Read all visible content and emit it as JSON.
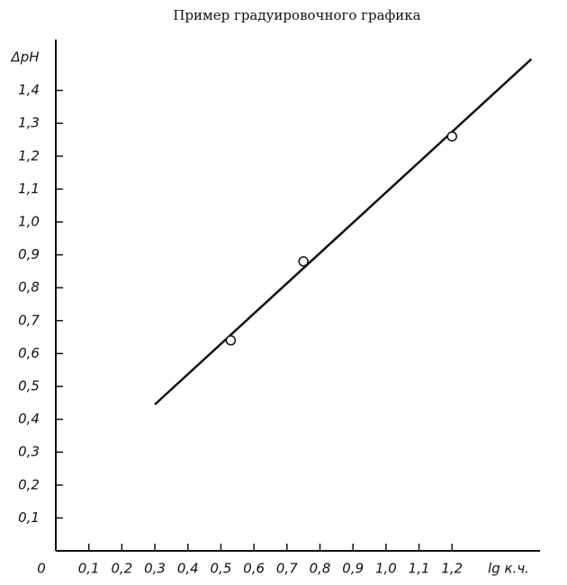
{
  "chart_data": {
    "type": "scatter",
    "title": "Пример градуировочного графика",
    "y_label": "ΔpH",
    "x_label": "lg к.ч.",
    "xlim": [
      0,
      1.45
    ],
    "ylim": [
      0,
      1.5
    ],
    "xticks": [
      0,
      {
        "value": 0.1,
        "label": "0,1"
      },
      {
        "value": 0.2,
        "label": "0,2"
      },
      {
        "value": 0.3,
        "label": "0,3"
      },
      {
        "value": 0.4,
        "label": "0,4"
      },
      {
        "value": 0.5,
        "label": "0,5"
      },
      {
        "value": 0.6,
        "label": "0,6"
      },
      {
        "value": 0.7,
        "label": "0,7"
      },
      {
        "value": 0.8,
        "label": "0,8"
      },
      {
        "value": 0.9,
        "label": "0,9"
      },
      {
        "value": 1.0,
        "label": "1,0"
      },
      {
        "value": 1.1,
        "label": "1,1"
      },
      {
        "value": 1.2,
        "label": "1,2"
      }
    ],
    "yticks": [
      {
        "value": 0.1,
        "label": "0,1"
      },
      {
        "value": 0.2,
        "label": "0,2"
      },
      {
        "value": 0.3,
        "label": "0,3"
      },
      {
        "value": 0.4,
        "label": "0,4"
      },
      {
        "value": 0.5,
        "label": "0,5"
      },
      {
        "value": 0.6,
        "label": "0,6"
      },
      {
        "value": 0.7,
        "label": "0,7"
      },
      {
        "value": 0.8,
        "label": "0,8"
      },
      {
        "value": 0.9,
        "label": "0,9"
      },
      {
        "value": 1.0,
        "label": "1,0"
      },
      {
        "value": 1.1,
        "label": "1,1"
      },
      {
        "value": 1.2,
        "label": "1,2"
      },
      {
        "value": 1.3,
        "label": "1,3"
      },
      {
        "value": 1.4,
        "label": "1,4"
      }
    ],
    "points": {
      "x": [
        0.53,
        0.75,
        1.2
      ],
      "y": [
        0.64,
        0.88,
        1.26
      ]
    },
    "fit_line": {
      "x": [
        0.3,
        1.44
      ],
      "y": [
        0.445,
        1.495
      ]
    },
    "color": "#111111"
  }
}
